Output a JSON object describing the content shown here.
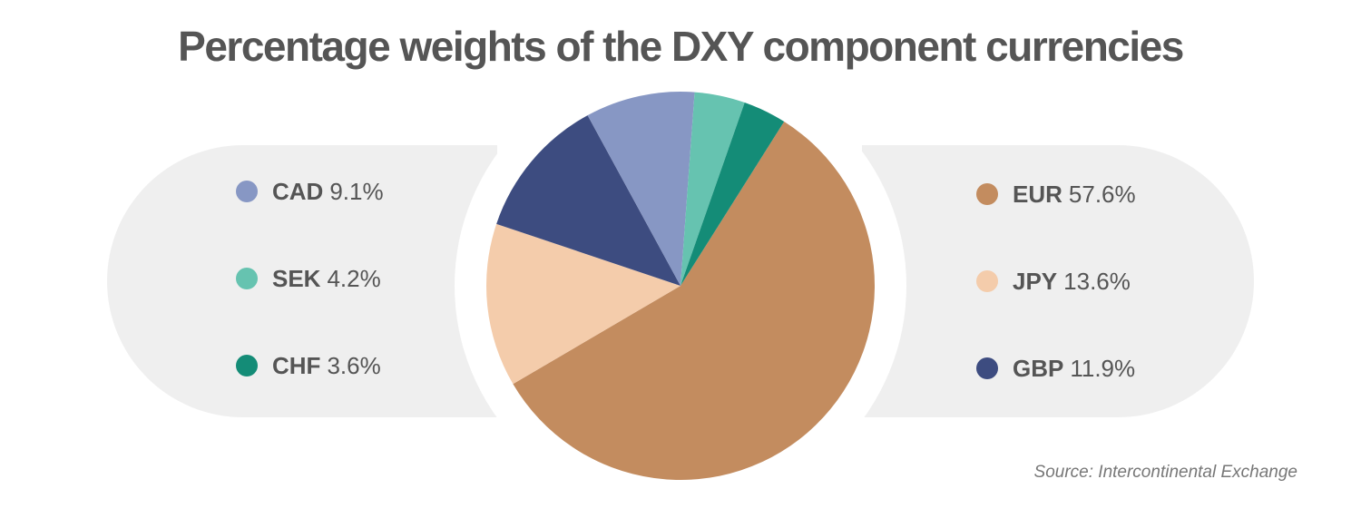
{
  "title": "Percentage weights of the DXY component currencies",
  "source": "Source:  Intercontinental Exchange",
  "chart_data": {
    "type": "pie",
    "title": "Percentage weights of the DXY component currencies",
    "slices": [
      {
        "code": "EUR",
        "label": "57.6%",
        "value": 57.6,
        "color": "#c38c5f"
      },
      {
        "code": "JPY",
        "label": "13.6%",
        "value": 13.6,
        "color": "#f4ccab"
      },
      {
        "code": "GBP",
        "label": "11.9%",
        "value": 11.9,
        "color": "#3d4c80"
      },
      {
        "code": "CAD",
        "label": "9.1%",
        "value": 9.1,
        "color": "#8797c4"
      },
      {
        "code": "SEK",
        "label": "4.2%",
        "value": 4.2,
        "color": "#66c3b0"
      },
      {
        "code": "CHF",
        "label": "3.6%",
        "value": 3.6,
        "color": "#148c77"
      }
    ],
    "legend_left": [
      "CAD",
      "SEK",
      "CHF"
    ],
    "legend_right": [
      "EUR",
      "JPY",
      "GBP"
    ]
  }
}
